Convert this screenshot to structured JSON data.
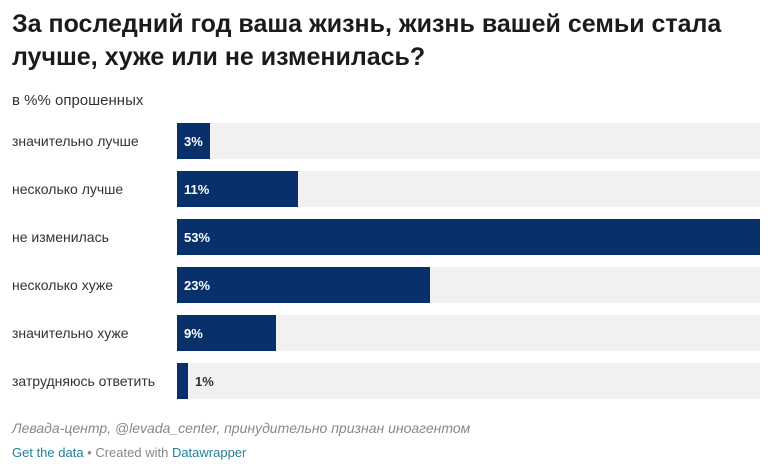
{
  "header": {
    "title": "За последний год ваша жизнь, жизнь вашей семьи стала лучше, хуже или не изменилась?",
    "subtitle": "в %% опрошенных"
  },
  "chart_data": {
    "type": "bar",
    "orientation": "horizontal",
    "categories": [
      "значительно лучше",
      "несколько лучше",
      "не изменилась",
      "несколько хуже",
      "значительно хуже",
      "затрудняюсь ответить"
    ],
    "values": [
      3,
      11,
      53,
      23,
      9,
      1
    ],
    "value_labels": [
      "3%",
      "11%",
      "53%",
      "23%",
      "9%",
      "1%"
    ],
    "xlim": [
      0,
      53
    ],
    "bar_color": "#08306b",
    "track_color": "#f1f1f1",
    "title": "За последний год ваша жизнь, жизнь вашей семьи стала лучше, хуже или не изменилась?",
    "subtitle": "в %% опрошенных"
  },
  "footer": {
    "source": "Левада-центр, @levada_center, принудительно признан иноагентом",
    "get_data": "Get the data",
    "separator": " • Created with ",
    "created_with": "Datawrapper"
  }
}
